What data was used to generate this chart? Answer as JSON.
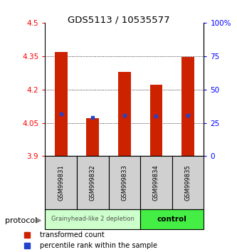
{
  "title": "GDS5113 / 10535577",
  "samples": [
    "GSM999831",
    "GSM999832",
    "GSM999833",
    "GSM999834",
    "GSM999835"
  ],
  "bar_bottoms": [
    3.9,
    3.9,
    3.9,
    3.9,
    3.9
  ],
  "bar_tops": [
    4.37,
    4.07,
    4.28,
    4.22,
    4.345
  ],
  "blue_marks": [
    4.09,
    4.075,
    4.085,
    4.08,
    4.085
  ],
  "ylim": [
    3.9,
    4.5
  ],
  "yticks_left": [
    3.9,
    4.05,
    4.2,
    4.35,
    4.5
  ],
  "yticks_right": [
    0,
    25,
    50,
    75,
    100
  ],
  "bar_color": "#cc2200",
  "blue_color": "#2244cc",
  "group1_samples": [
    0,
    1,
    2
  ],
  "group2_samples": [
    3,
    4
  ],
  "group1_label": "Grainyhead-like 2 depletion",
  "group2_label": "control",
  "group1_color": "#ccffcc",
  "group2_color": "#44ee44",
  "protocol_label": "protocol",
  "legend_red_label": "transformed count",
  "legend_blue_label": "percentile rank within the sample",
  "bar_width": 0.4
}
